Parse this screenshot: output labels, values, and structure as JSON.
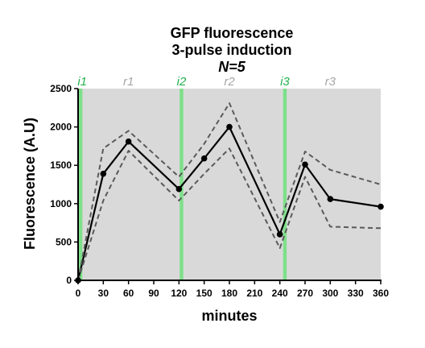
{
  "chart_data": {
    "type": "line",
    "title": "GFP fluorescence",
    "subtitle": "3-pulse induction",
    "subtitle2": "N=5",
    "xlabel": "minutes",
    "ylabel": "Fluorescence  (A.U)",
    "xlim": [
      0,
      360
    ],
    "ylim": [
      0,
      2500
    ],
    "x_ticks": [
      0,
      30,
      60,
      90,
      120,
      150,
      180,
      210,
      240,
      270,
      300,
      330,
      360
    ],
    "y_ticks": [
      0,
      500,
      1000,
      1500,
      2000,
      2500
    ],
    "plot_background": "#d9d9d9",
    "series": [
      {
        "style": "solid",
        "color": "#000000",
        "markers": true,
        "points": [
          [
            0,
            0
          ],
          [
            30,
            1390
          ],
          [
            60,
            1810
          ],
          [
            120,
            1190
          ],
          [
            150,
            1590
          ],
          [
            180,
            2000
          ],
          [
            240,
            600
          ],
          [
            270,
            1510
          ],
          [
            300,
            1060
          ],
          [
            360,
            960
          ]
        ]
      },
      {
        "style": "dashed",
        "color": "#5a5a5a",
        "markers": false,
        "points": [
          [
            0,
            0
          ],
          [
            30,
            1720
          ],
          [
            60,
            1950
          ],
          [
            120,
            1350
          ],
          [
            150,
            1780
          ],
          [
            180,
            2310
          ],
          [
            240,
            760
          ],
          [
            270,
            1680
          ],
          [
            300,
            1440
          ],
          [
            360,
            1250
          ]
        ]
      },
      {
        "style": "dashed",
        "color": "#5a5a5a",
        "markers": false,
        "points": [
          [
            0,
            0
          ],
          [
            30,
            1040
          ],
          [
            60,
            1690
          ],
          [
            120,
            1040
          ],
          [
            150,
            1390
          ],
          [
            180,
            1720
          ],
          [
            240,
            420
          ],
          [
            270,
            1350
          ],
          [
            300,
            700
          ],
          [
            360,
            680
          ]
        ]
      }
    ],
    "induction_lines": {
      "color": "#7ee08a",
      "x": [
        3,
        123,
        246
      ]
    },
    "pulse_labels": [
      {
        "text": "i1",
        "x": 5,
        "color": "#22b14c"
      },
      {
        "text": "r1",
        "x": 60,
        "color": "#a6a6a6"
      },
      {
        "text": "i2",
        "x": 123,
        "color": "#22b14c"
      },
      {
        "text": "r2",
        "x": 180,
        "color": "#a6a6a6"
      },
      {
        "text": "i3",
        "x": 246,
        "color": "#22b14c"
      },
      {
        "text": "r3",
        "x": 300,
        "color": "#a6a6a6"
      }
    ]
  }
}
